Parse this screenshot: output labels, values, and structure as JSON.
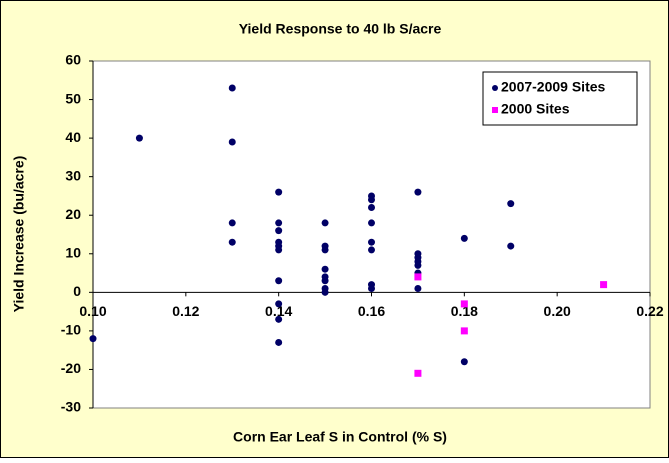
{
  "chart_data": {
    "type": "scatter",
    "title": "Yield Response to 40 lb S/acre",
    "x_label": "Corn Ear Leaf S in Control (% S)",
    "y_label": "Yield Increase (bu/acre)",
    "xlim": [
      0.1,
      0.22
    ],
    "xticks": [
      {
        "value": 0.1,
        "label": "0.10"
      },
      0.12,
      0.14,
      0.16,
      0.18,
      {
        "value": 0.2,
        "label": "0.20"
      },
      0.22
    ],
    "ylim": [
      -30,
      60
    ],
    "yticks": [
      -30,
      -20,
      -10,
      0,
      10,
      20,
      30,
      40,
      50,
      60
    ],
    "legend": "top-right",
    "series": [
      {
        "name": "2007-2009 Sites",
        "color": "#000066",
        "marker": "circle",
        "x": [
          0.1,
          0.11,
          0.13,
          0.13,
          0.13,
          0.13,
          0.14,
          0.14,
          0.14,
          0.14,
          0.14,
          0.14,
          0.14,
          0.14,
          0.14,
          0.14,
          0.15,
          0.15,
          0.15,
          0.15,
          0.15,
          0.15,
          0.15,
          0.15,
          0.16,
          0.16,
          0.16,
          0.16,
          0.16,
          0.16,
          0.16,
          0.16,
          0.17,
          0.17,
          0.17,
          0.17,
          0.17,
          0.17,
          0.17,
          0.18,
          0.18,
          0.19,
          0.19
        ],
        "values": [
          -12,
          40,
          53,
          39,
          18,
          13,
          26,
          18,
          16,
          13,
          12,
          11,
          3,
          -3,
          -7,
          -13,
          18,
          12,
          11,
          6,
          4,
          3,
          1,
          0,
          25,
          24,
          22,
          18,
          13,
          11,
          2,
          1,
          26,
          10,
          9,
          8,
          7,
          5,
          1,
          14,
          -18,
          23,
          12
        ]
      },
      {
        "name": "2000 Sites",
        "color": "#ff00ff",
        "marker": "square",
        "x": [
          0.17,
          0.17,
          0.18,
          0.18,
          0.21
        ],
        "values": [
          4,
          -21,
          -3,
          -10,
          2
        ]
      }
    ]
  }
}
